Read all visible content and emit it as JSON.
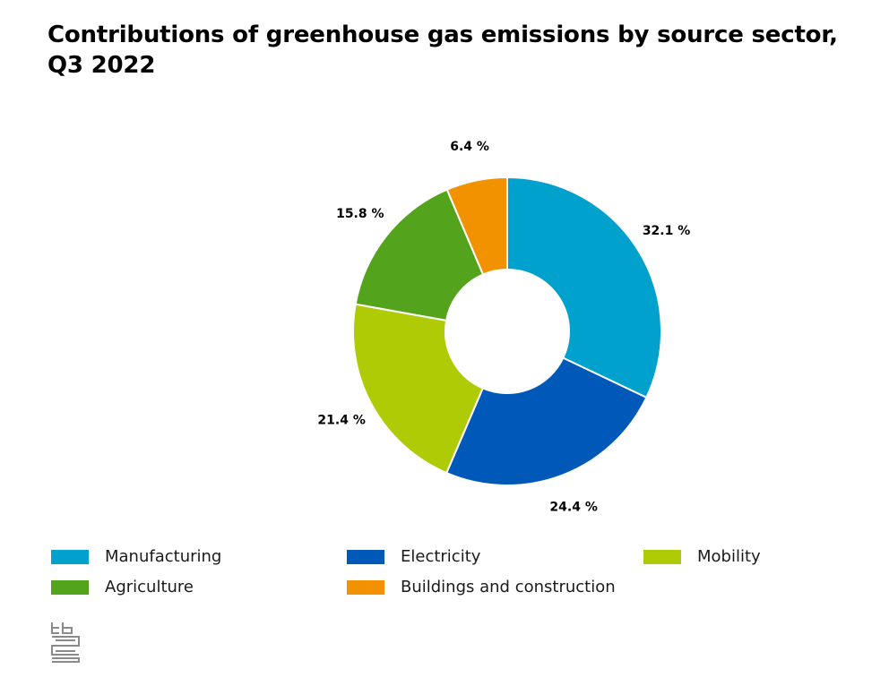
{
  "title": "Contributions of greenhouse gas emissions by source sector, Q3 2022",
  "chart_data": {
    "type": "pie",
    "donut": true,
    "title": "Contributions of greenhouse gas emissions by source sector, Q3 2022",
    "categories": [
      "Manufacturing",
      "Electricity",
      "Mobility",
      "Agriculture",
      "Buildings and construction"
    ],
    "values": [
      32.1,
      24.4,
      21.4,
      15.8,
      6.4
    ],
    "labels": [
      "32.1 %",
      "24.4 %",
      "21.4 %",
      "15.8 %",
      "6.4 %"
    ],
    "unit": "%",
    "colors": [
      "#00a1cd",
      "#0058b8",
      "#afcb05",
      "#53a31d",
      "#f39200"
    ],
    "legend_position": "bottom"
  },
  "legend": {
    "items": [
      {
        "label": "Manufacturing",
        "color": "#00a1cd"
      },
      {
        "label": "Electricity",
        "color": "#0058b8"
      },
      {
        "label": "Mobility",
        "color": "#afcb05"
      },
      {
        "label": "Agriculture",
        "color": "#53a31d"
      },
      {
        "label": "Buildings and construction",
        "color": "#f39200"
      }
    ]
  },
  "logo": {
    "icon": "cbs-logo-icon"
  }
}
